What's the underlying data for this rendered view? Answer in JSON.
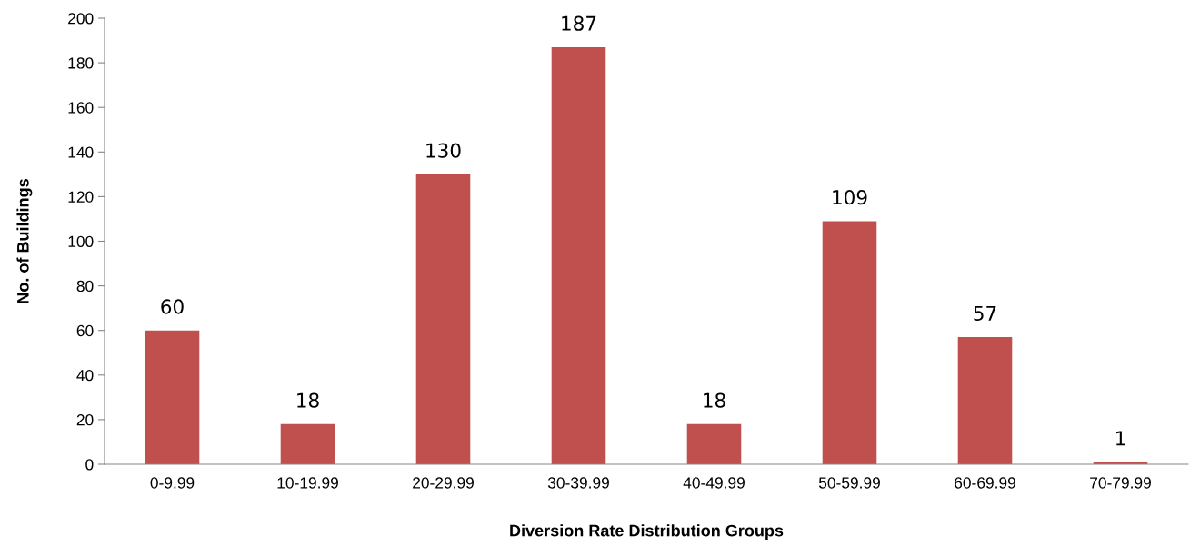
{
  "chart_data": {
    "type": "bar",
    "xlabel": "Diversion Rate Distribution Groups",
    "ylabel": "No. of Buildings",
    "categories": [
      "0-9.99",
      "10-19.99",
      "20-29.99",
      "30-39.99",
      "40-49.99",
      "50-59.99",
      "60-69.99",
      "70-79.99"
    ],
    "values": [
      60,
      18,
      130,
      187,
      18,
      109,
      57,
      1
    ],
    "color": "#c0504d",
    "ylim": [
      0,
      200
    ],
    "yticks": [
      0,
      20,
      40,
      60,
      80,
      100,
      120,
      140,
      160,
      180,
      200
    ],
    "data_labels": true,
    "grid": false,
    "legend": false
  }
}
